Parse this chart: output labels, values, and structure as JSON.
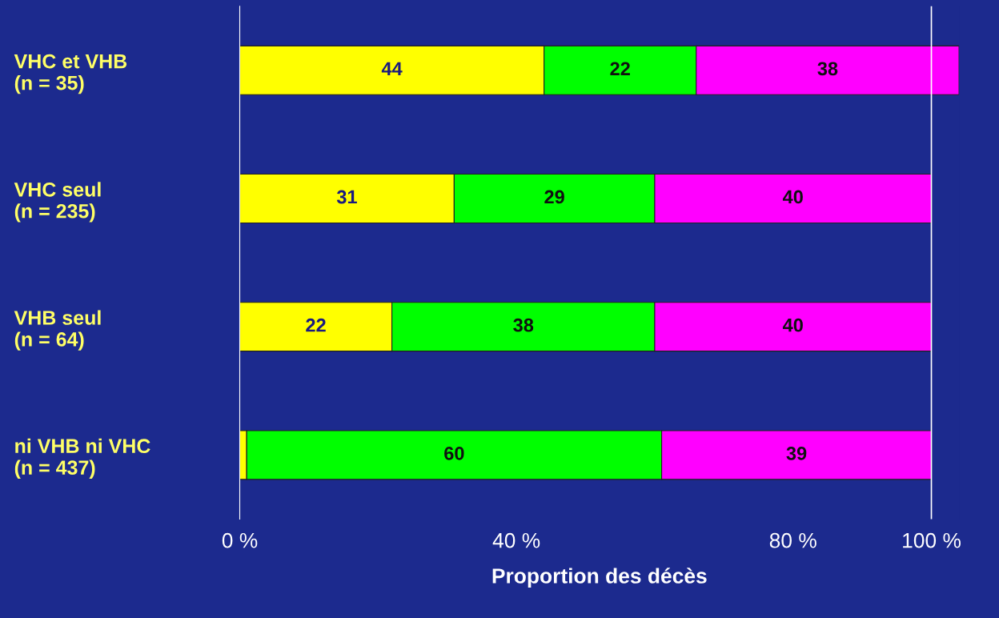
{
  "chart_data": {
    "type": "bar",
    "orientation": "horizontal",
    "stacked": true,
    "categories": [
      "VHC et VHB\n(n = 35)",
      "VHC seul\n(n = 235)",
      "VHB seul\n(n = 64)",
      "ni VHB ni VHC\n(n = 437)"
    ],
    "series": [
      {
        "color": "#ffff00",
        "values": [
          44,
          31,
          22,
          1
        ],
        "value_labels": [
          "44",
          "31",
          "22",
          null
        ]
      },
      {
        "color": "#00ff00",
        "values": [
          22,
          29,
          38,
          60
        ],
        "value_labels": [
          "22",
          "29",
          "38",
          "60"
        ]
      },
      {
        "color": "#ff00ff",
        "values": [
          38,
          40,
          40,
          39
        ],
        "value_labels": [
          "38",
          "40",
          "40",
          "39"
        ]
      }
    ],
    "xlim": [
      0,
      104
    ],
    "xticks": [
      {
        "value": 0,
        "label": "0 %"
      },
      {
        "value": 40,
        "label": "40 %"
      },
      {
        "value": 80,
        "label": "80 %"
      },
      {
        "value": 100,
        "label": "100 %"
      }
    ],
    "xlabel": "Proportion des décès",
    "ref_lines": [
      {
        "axis": "x",
        "value": 100,
        "color": "#ffffff"
      }
    ],
    "legend": false
  }
}
